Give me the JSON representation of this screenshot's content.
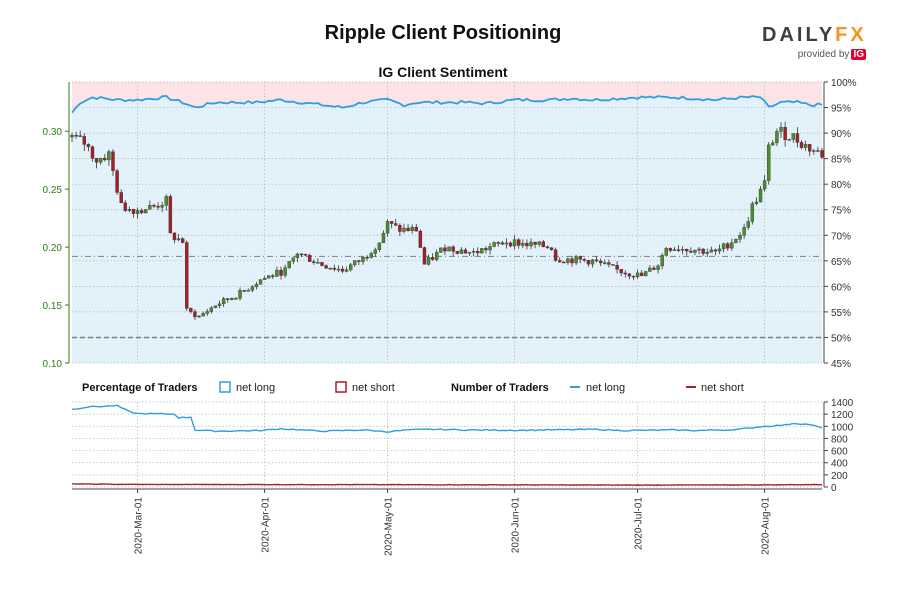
{
  "title": "Ripple Client Positioning",
  "subtitle": "IG Client Sentiment",
  "brand": {
    "name_main": "DAILY",
    "name_accent": "FX",
    "provided_by": "provided by",
    "ig": "IG"
  },
  "colors": {
    "price_axis": "#2e7d12",
    "up_candle": "#4a8f2a",
    "down_candle": "#a51f2a",
    "net_long": "#2f9ee0",
    "net_short": "#a51f2a",
    "long_fill": "#e3f1fb",
    "short_fill": "#fbe3e6",
    "grid": "#b5b5b5"
  },
  "legend": {
    "pct_title": "Percentage of Traders",
    "pct_long": "net long",
    "pct_short": "net short",
    "num_title": "Number of Traders",
    "num_long": "net long",
    "num_short": "net short"
  },
  "chart_data": [
    {
      "type": "candlestick",
      "y_left": {
        "ticks": [
          "0.10",
          "0.15",
          "0.20",
          "0.25",
          "0.30"
        ],
        "range": [
          0.1,
          0.3425
        ]
      },
      "y_right": {
        "ticks": [
          "45%",
          "50%",
          "55%",
          "60%",
          "65%",
          "70%",
          "75%",
          "80%",
          "85%",
          "90%",
          "95%",
          "100%"
        ],
        "range": [
          45,
          100
        ]
      },
      "x_ticks": [
        "2020-Mar-01",
        "2020-Apr-01",
        "2020-May-01",
        "2020-Jun-01",
        "2020-Jul-01",
        "2020-Aug-01"
      ],
      "reference_lines": [
        0.192,
        0.122
      ],
      "price_keypoints": [
        [
          "2020-02-14",
          0.295
        ],
        [
          "2020-02-17",
          0.29
        ],
        [
          "2020-02-20",
          0.275
        ],
        [
          "2020-02-23",
          0.28
        ],
        [
          "2020-02-26",
          0.235
        ],
        [
          "2020-03-01",
          0.232
        ],
        [
          "2020-03-05",
          0.235
        ],
        [
          "2020-03-08",
          0.24
        ],
        [
          "2020-03-09",
          0.21
        ],
        [
          "2020-03-12",
          0.205
        ],
        [
          "2020-03-13",
          0.145
        ],
        [
          "2020-03-16",
          0.14
        ],
        [
          "2020-03-20",
          0.15
        ],
        [
          "2020-03-26",
          0.16
        ],
        [
          "2020-03-31",
          0.172
        ],
        [
          "2020-04-06",
          0.18
        ],
        [
          "2020-04-09",
          0.195
        ],
        [
          "2020-04-15",
          0.185
        ],
        [
          "2020-04-20",
          0.18
        ],
        [
          "2020-04-25",
          0.19
        ],
        [
          "2020-04-29",
          0.205
        ],
        [
          "2020-05-01",
          0.22
        ],
        [
          "2020-05-04",
          0.215
        ],
        [
          "2020-05-08",
          0.215
        ],
        [
          "2020-05-10",
          0.185
        ],
        [
          "2020-05-15",
          0.2
        ],
        [
          "2020-05-22",
          0.195
        ],
        [
          "2020-05-26",
          0.2
        ],
        [
          "2020-05-30",
          0.205
        ],
        [
          "2020-06-05",
          0.202
        ],
        [
          "2020-06-10",
          0.2
        ],
        [
          "2020-06-11",
          0.19
        ],
        [
          "2020-06-20",
          0.188
        ],
        [
          "2020-06-26",
          0.18
        ],
        [
          "2020-07-02",
          0.175
        ],
        [
          "2020-07-06",
          0.185
        ],
        [
          "2020-07-08",
          0.2
        ],
        [
          "2020-07-15",
          0.198
        ],
        [
          "2020-07-20",
          0.195
        ],
        [
          "2020-07-24",
          0.205
        ],
        [
          "2020-07-27",
          0.215
        ],
        [
          "2020-07-29",
          0.235
        ],
        [
          "2020-08-01",
          0.255
        ],
        [
          "2020-08-02",
          0.285
        ],
        [
          "2020-08-04",
          0.3
        ],
        [
          "2020-08-08",
          0.295
        ],
        [
          "2020-08-12",
          0.285
        ],
        [
          "2020-08-15",
          0.28
        ]
      ],
      "net_long_pct_keypoints": [
        [
          "2020-02-14",
          94
        ],
        [
          "2020-02-16",
          96
        ],
        [
          "2020-02-19",
          97
        ],
        [
          "2020-02-25",
          96.5
        ],
        [
          "2020-03-01",
          96.5
        ],
        [
          "2020-03-05",
          96.8
        ],
        [
          "2020-03-08",
          97
        ],
        [
          "2020-03-12",
          96
        ],
        [
          "2020-03-15",
          95
        ],
        [
          "2020-03-20",
          96
        ],
        [
          "2020-03-30",
          96
        ],
        [
          "2020-04-05",
          96.5
        ],
        [
          "2020-04-10",
          96
        ],
        [
          "2020-04-15",
          95.5
        ],
        [
          "2020-04-20",
          95
        ],
        [
          "2020-04-25",
          96
        ],
        [
          "2020-05-01",
          96.5
        ],
        [
          "2020-05-05",
          95.5
        ],
        [
          "2020-05-08",
          96
        ],
        [
          "2020-05-12",
          96
        ],
        [
          "2020-05-20",
          96
        ],
        [
          "2020-05-25",
          95.8
        ],
        [
          "2020-06-01",
          96.5
        ],
        [
          "2020-06-10",
          96.5
        ],
        [
          "2020-06-15",
          96.8
        ],
        [
          "2020-06-20",
          96.5
        ],
        [
          "2020-07-01",
          97
        ],
        [
          "2020-07-10",
          97
        ],
        [
          "2020-07-15",
          96.8
        ],
        [
          "2020-07-20",
          96.5
        ],
        [
          "2020-07-27",
          97
        ],
        [
          "2020-07-31",
          97
        ],
        [
          "2020-08-02",
          95
        ],
        [
          "2020-08-05",
          96
        ],
        [
          "2020-08-09",
          96
        ],
        [
          "2020-08-12",
          95.5
        ],
        [
          "2020-08-14",
          95.5
        ]
      ]
    },
    {
      "type": "line",
      "y_ticks": [
        "0",
        "200",
        "400",
        "600",
        "800",
        "1000",
        "1200",
        "1400"
      ],
      "y_range": [
        0,
        1400
      ],
      "series": [
        {
          "name": "net long",
          "keypoints": [
            [
              "2020-02-14",
              1280
            ],
            [
              "2020-02-18",
              1320
            ],
            [
              "2020-02-22",
              1330
            ],
            [
              "2020-02-25",
              1340
            ],
            [
              "2020-02-28",
              1240
            ],
            [
              "2020-03-01",
              1210
            ],
            [
              "2020-03-10",
              1200
            ],
            [
              "2020-03-11",
              1140
            ],
            [
              "2020-03-14",
              1150
            ],
            [
              "2020-03-15",
              940
            ],
            [
              "2020-03-20",
              920
            ],
            [
              "2020-03-31",
              930
            ],
            [
              "2020-04-05",
              960
            ],
            [
              "2020-04-15",
              920
            ],
            [
              "2020-04-25",
              940
            ],
            [
              "2020-05-01",
              910
            ],
            [
              "2020-05-06",
              940
            ],
            [
              "2020-05-12",
              950
            ],
            [
              "2020-05-20",
              940
            ],
            [
              "2020-06-01",
              935
            ],
            [
              "2020-06-10",
              940
            ],
            [
              "2020-06-20",
              950
            ],
            [
              "2020-06-28",
              930
            ],
            [
              "2020-07-10",
              940
            ],
            [
              "2020-07-15",
              930
            ],
            [
              "2020-07-25",
              945
            ],
            [
              "2020-08-01",
              1000
            ],
            [
              "2020-08-06",
              1020
            ],
            [
              "2020-08-08",
              1050
            ],
            [
              "2020-08-12",
              1030
            ],
            [
              "2020-08-15",
              970
            ]
          ]
        },
        {
          "name": "net short",
          "keypoints": [
            [
              "2020-02-14",
              50
            ],
            [
              "2020-03-01",
              42
            ],
            [
              "2020-04-01",
              40
            ],
            [
              "2020-05-01",
              38
            ],
            [
              "2020-06-01",
              35
            ],
            [
              "2020-07-01",
              32
            ],
            [
              "2020-08-01",
              35
            ],
            [
              "2020-08-15",
              40
            ]
          ]
        }
      ]
    }
  ]
}
